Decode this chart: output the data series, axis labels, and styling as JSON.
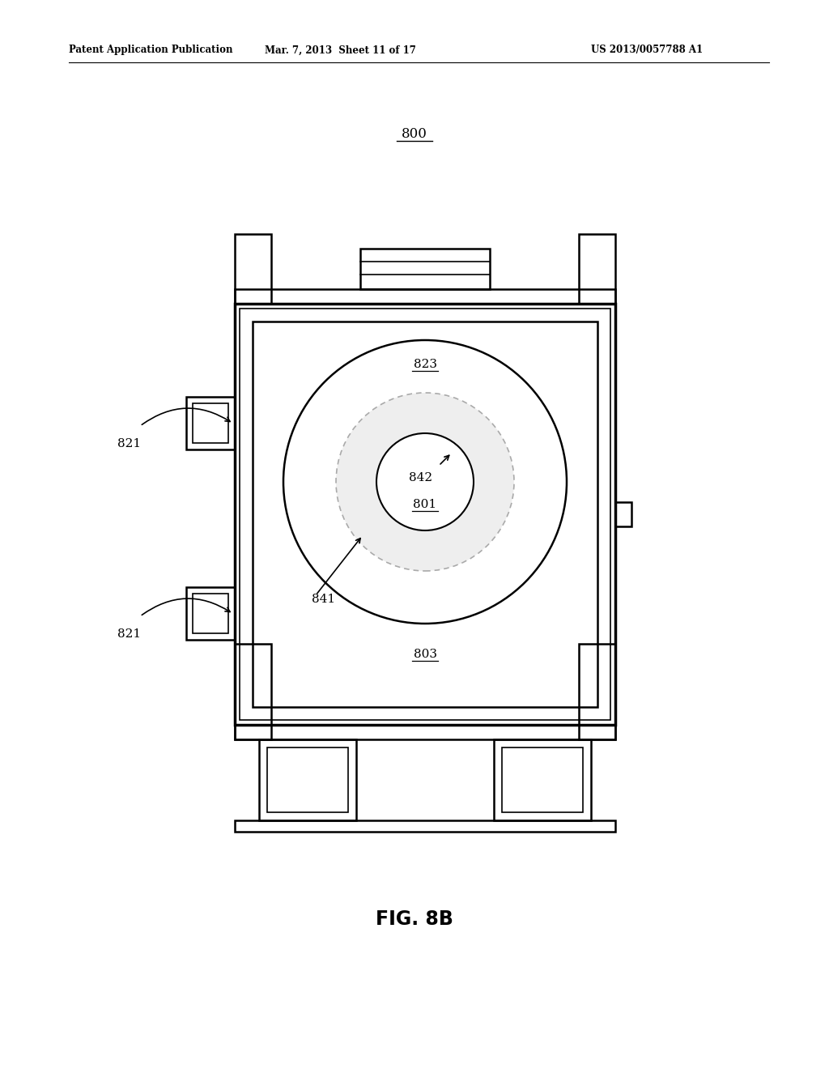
{
  "bg_color": "#ffffff",
  "line_color": "#000000",
  "header_left": "Patent Application Publication",
  "header_mid": "Mar. 7, 2013  Sheet 11 of 17",
  "header_right": "US 2013/0057788 A1",
  "fig_label": "FIG. 8B",
  "label_800": "800",
  "label_821_top": "821",
  "label_821_bot": "821",
  "label_823": "823",
  "label_841": "841",
  "label_842": "842",
  "label_801": "801",
  "label_803": "803"
}
